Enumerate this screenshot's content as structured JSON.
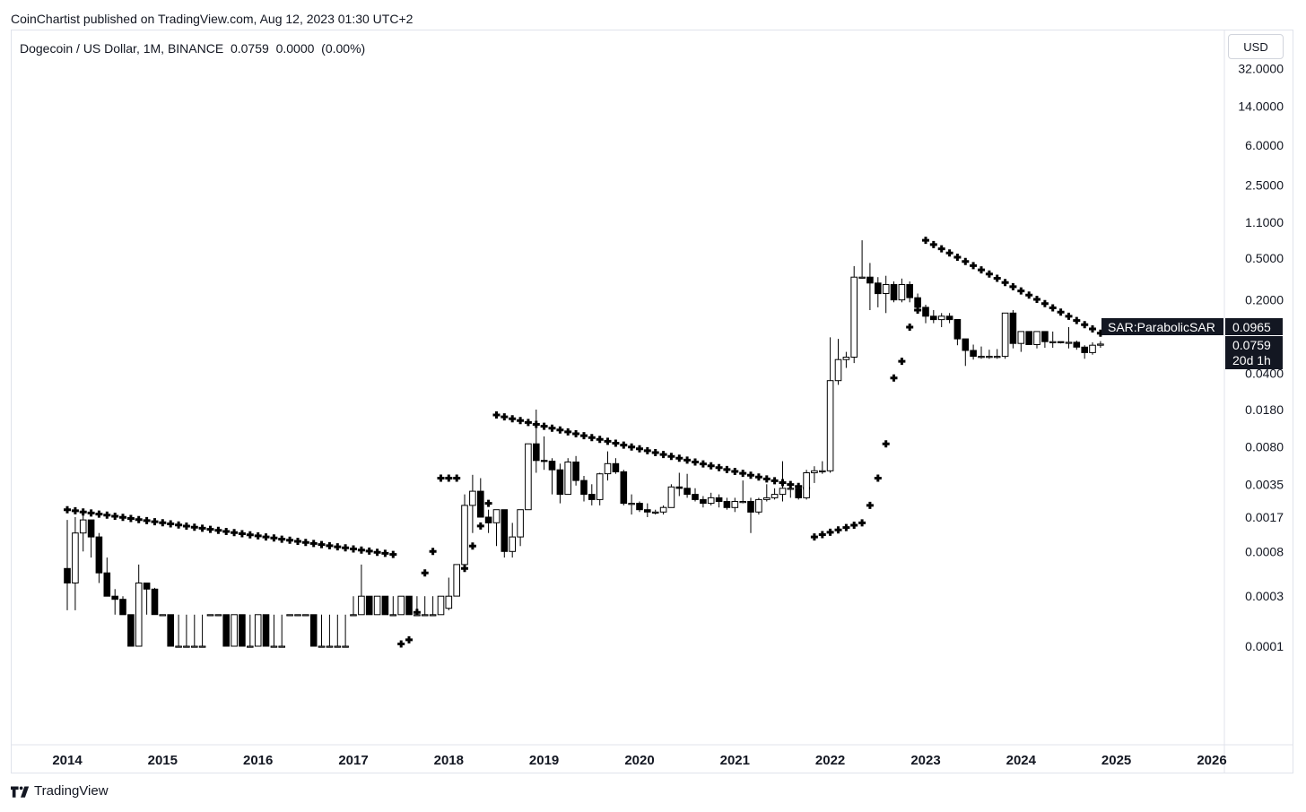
{
  "header": {
    "published": "CoinChartist published on TradingView.com, Aug 12, 2023 01:30 UTC+2",
    "symbol_line": "Dogecoin / US Dollar, 1M, BINANCE  0.0759  0.0000  (0.00%)",
    "currency": "USD"
  },
  "footer": {
    "brand": "TradingView"
  },
  "chart_data": {
    "type": "candlestick",
    "title": "Dogecoin / US Dollar, 1M, BINANCE",
    "scale": "log",
    "y_ticks": [
      "32.0000",
      "14.0000",
      "6.0000",
      "2.5000",
      "1.1000",
      "0.5000",
      "0.2000",
      "0.0400",
      "0.0180",
      "0.0080",
      "0.0035",
      "0.0017",
      "0.0008",
      "0.0003",
      "0.0001"
    ],
    "x_ticks": [
      "2014",
      "2015",
      "2016",
      "2017",
      "2018",
      "2019",
      "2020",
      "2021",
      "2022",
      "2023",
      "2024",
      "2025",
      "2026"
    ],
    "last_price": "0.0759",
    "countdown": "20d 1h",
    "indicator": {
      "name": "SAR:ParabolicSAR",
      "value": "0.0965"
    },
    "candles_key": "t=months since Jan 2014, o/h/l/c in USD",
    "candles": [
      {
        "t": 0,
        "o": 0.00055,
        "h": 0.0016,
        "l": 0.00022,
        "c": 0.0004
      },
      {
        "t": 1,
        "o": 0.0004,
        "h": 0.0017,
        "l": 0.00022,
        "c": 0.0012
      },
      {
        "t": 2,
        "o": 0.0012,
        "h": 0.0019,
        "l": 0.0008,
        "c": 0.0016
      },
      {
        "t": 3,
        "o": 0.0016,
        "h": 0.0016,
        "l": 0.0007,
        "c": 0.0011
      },
      {
        "t": 4,
        "o": 0.0011,
        "h": 0.0012,
        "l": 0.0004,
        "c": 0.0005
      },
      {
        "t": 5,
        "o": 0.0005,
        "h": 0.0007,
        "l": 0.0003,
        "c": 0.0003
      },
      {
        "t": 6,
        "o": 0.0003,
        "h": 0.00035,
        "l": 0.0002,
        "c": 0.00028
      },
      {
        "t": 7,
        "o": 0.00028,
        "h": 0.0003,
        "l": 0.0002,
        "c": 0.0002
      },
      {
        "t": 8,
        "o": 0.0002,
        "h": 0.0002,
        "l": 0.0001,
        "c": 0.0001
      },
      {
        "t": 9,
        "o": 0.0001,
        "h": 0.0006,
        "l": 0.0001,
        "c": 0.0004
      },
      {
        "t": 10,
        "o": 0.0004,
        "h": 0.0004,
        "l": 0.0002,
        "c": 0.00035
      },
      {
        "t": 11,
        "o": 0.00035,
        "h": 0.00036,
        "l": 0.0002,
        "c": 0.0002
      },
      {
        "t": 12,
        "o": 0.0002,
        "h": 0.0002,
        "l": 0.0002,
        "c": 0.0002
      },
      {
        "t": 13,
        "o": 0.0002,
        "h": 0.0002,
        "l": 0.0001,
        "c": 0.0001
      },
      {
        "t": 14,
        "o": 0.0001,
        "h": 0.0002,
        "l": 0.0001,
        "c": 0.0001
      },
      {
        "t": 15,
        "o": 0.0001,
        "h": 0.0002,
        "l": 0.0001,
        "c": 0.0001
      },
      {
        "t": 16,
        "o": 0.0001,
        "h": 0.0002,
        "l": 0.0001,
        "c": 0.0001
      },
      {
        "t": 17,
        "o": 0.0001,
        "h": 0.0002,
        "l": 0.0001,
        "c": 0.0001
      },
      {
        "t": 18,
        "o": 0.0002,
        "h": 0.0002,
        "l": 0.0002,
        "c": 0.0002
      },
      {
        "t": 19,
        "o": 0.0002,
        "h": 0.0002,
        "l": 0.0002,
        "c": 0.0002
      },
      {
        "t": 20,
        "o": 0.0002,
        "h": 0.0002,
        "l": 0.0001,
        "c": 0.0001
      },
      {
        "t": 21,
        "o": 0.0001,
        "h": 0.0002,
        "l": 0.0001,
        "c": 0.0002
      },
      {
        "t": 22,
        "o": 0.0002,
        "h": 0.0002,
        "l": 0.0001,
        "c": 0.0001
      },
      {
        "t": 23,
        "o": 0.0001,
        "h": 0.0002,
        "l": 0.0001,
        "c": 0.0001
      },
      {
        "t": 24,
        "o": 0.0001,
        "h": 0.0002,
        "l": 0.0001,
        "c": 0.0002
      },
      {
        "t": 25,
        "o": 0.0002,
        "h": 0.0002,
        "l": 0.0001,
        "c": 0.0001
      },
      {
        "t": 26,
        "o": 0.0001,
        "h": 0.0002,
        "l": 0.0001,
        "c": 0.0001
      },
      {
        "t": 27,
        "o": 0.0001,
        "h": 0.0002,
        "l": 0.0001,
        "c": 0.0001
      },
      {
        "t": 28,
        "o": 0.0002,
        "h": 0.0002,
        "l": 0.0002,
        "c": 0.0002
      },
      {
        "t": 29,
        "o": 0.0002,
        "h": 0.0002,
        "l": 0.0002,
        "c": 0.0002
      },
      {
        "t": 30,
        "o": 0.0002,
        "h": 0.0002,
        "l": 0.0002,
        "c": 0.0002
      },
      {
        "t": 31,
        "o": 0.0002,
        "h": 0.0002,
        "l": 0.0001,
        "c": 0.0001
      },
      {
        "t": 32,
        "o": 0.0001,
        "h": 0.0002,
        "l": 0.0001,
        "c": 0.0001
      },
      {
        "t": 33,
        "o": 0.0001,
        "h": 0.0002,
        "l": 0.0001,
        "c": 0.0001
      },
      {
        "t": 34,
        "o": 0.0001,
        "h": 0.0002,
        "l": 0.0001,
        "c": 0.0001
      },
      {
        "t": 35,
        "o": 0.0001,
        "h": 0.0002,
        "l": 0.0001,
        "c": 0.0001
      },
      {
        "t": 36,
        "o": 0.0002,
        "h": 0.0003,
        "l": 0.0002,
        "c": 0.0002
      },
      {
        "t": 37,
        "o": 0.0002,
        "h": 0.0006,
        "l": 0.0002,
        "c": 0.0003
      },
      {
        "t": 38,
        "o": 0.0003,
        "h": 0.0003,
        "l": 0.0002,
        "c": 0.0002
      },
      {
        "t": 39,
        "o": 0.0002,
        "h": 0.0003,
        "l": 0.0002,
        "c": 0.0003
      },
      {
        "t": 40,
        "o": 0.0003,
        "h": 0.0003,
        "l": 0.0002,
        "c": 0.0002
      },
      {
        "t": 41,
        "o": 0.0002,
        "h": 0.0003,
        "l": 0.0002,
        "c": 0.0002
      },
      {
        "t": 42,
        "o": 0.0002,
        "h": 0.0003,
        "l": 0.0002,
        "c": 0.0003
      },
      {
        "t": 43,
        "o": 0.0003,
        "h": 0.0003,
        "l": 0.0002,
        "c": 0.0002
      },
      {
        "t": 44,
        "o": 0.0002,
        "h": 0.0003,
        "l": 0.0002,
        "c": 0.0002
      },
      {
        "t": 45,
        "o": 0.0002,
        "h": 0.0003,
        "l": 0.0002,
        "c": 0.0002
      },
      {
        "t": 46,
        "o": 0.0002,
        "h": 0.0003,
        "l": 0.0002,
        "c": 0.0002
      },
      {
        "t": 47,
        "o": 0.0002,
        "h": 0.0003,
        "l": 0.0002,
        "c": 0.0003
      },
      {
        "t": 48,
        "o": 0.00023,
        "h": 0.00045,
        "l": 0.00022,
        "c": 0.0003
      },
      {
        "t": 49,
        "o": 0.0003,
        "h": 0.0006,
        "l": 0.0003,
        "c": 0.0006
      },
      {
        "t": 50,
        "o": 0.0006,
        "h": 0.0028,
        "l": 0.0006,
        "c": 0.0022
      },
      {
        "t": 51,
        "o": 0.0022,
        "h": 0.0043,
        "l": 0.0012,
        "c": 0.003
      },
      {
        "t": 52,
        "o": 0.003,
        "h": 0.004,
        "l": 0.0017,
        "c": 0.0017
      },
      {
        "t": 53,
        "o": 0.0017,
        "h": 0.002,
        "l": 0.0012,
        "c": 0.0015
      },
      {
        "t": 54,
        "o": 0.0015,
        "h": 0.002,
        "l": 0.0009,
        "c": 0.002
      },
      {
        "t": 55,
        "o": 0.002,
        "h": 0.002,
        "l": 0.0007,
        "c": 0.0008
      },
      {
        "t": 56,
        "o": 0.0008,
        "h": 0.0015,
        "l": 0.0007,
        "c": 0.0011
      },
      {
        "t": 57,
        "o": 0.0011,
        "h": 0.002,
        "l": 0.0009,
        "c": 0.002
      },
      {
        "t": 58,
        "o": 0.002,
        "h": 0.0085,
        "l": 0.002,
        "c": 0.0085
      },
      {
        "t": 59,
        "o": 0.0085,
        "h": 0.018,
        "l": 0.0045,
        "c": 0.0059
      },
      {
        "t": 60,
        "o": 0.0059,
        "h": 0.01,
        "l": 0.0048,
        "c": 0.0058
      },
      {
        "t": 61,
        "o": 0.0058,
        "h": 0.0062,
        "l": 0.0028,
        "c": 0.0048
      },
      {
        "t": 62,
        "o": 0.0048,
        "h": 0.0055,
        "l": 0.0023,
        "c": 0.0028
      },
      {
        "t": 63,
        "o": 0.0028,
        "h": 0.0062,
        "l": 0.0028,
        "c": 0.0057
      },
      {
        "t": 64,
        "o": 0.0057,
        "h": 0.0065,
        "l": 0.0034,
        "c": 0.0038
      },
      {
        "t": 65,
        "o": 0.0038,
        "h": 0.0042,
        "l": 0.0024,
        "c": 0.0028
      },
      {
        "t": 66,
        "o": 0.0028,
        "h": 0.0035,
        "l": 0.0022,
        "c": 0.0025
      },
      {
        "t": 67,
        "o": 0.0025,
        "h": 0.0045,
        "l": 0.0022,
        "c": 0.0044
      },
      {
        "t": 68,
        "o": 0.0044,
        "h": 0.0072,
        "l": 0.0038,
        "c": 0.0055
      },
      {
        "t": 69,
        "o": 0.0055,
        "h": 0.0062,
        "l": 0.0044,
        "c": 0.0046
      },
      {
        "t": 70,
        "o": 0.0046,
        "h": 0.0048,
        "l": 0.0022,
        "c": 0.0023
      },
      {
        "t": 71,
        "o": 0.0023,
        "h": 0.0028,
        "l": 0.0018,
        "c": 0.0023
      },
      {
        "t": 72,
        "o": 0.0023,
        "h": 0.0024,
        "l": 0.0019,
        "c": 0.002
      },
      {
        "t": 73,
        "o": 0.002,
        "h": 0.0023,
        "l": 0.0017,
        "c": 0.0019
      },
      {
        "t": 74,
        "o": 0.0019,
        "h": 0.002,
        "l": 0.0018,
        "c": 0.0019
      },
      {
        "t": 75,
        "o": 0.0019,
        "h": 0.0022,
        "l": 0.0018,
        "c": 0.0021
      },
      {
        "t": 76,
        "o": 0.0021,
        "h": 0.0035,
        "l": 0.0021,
        "c": 0.0033
      },
      {
        "t": 77,
        "o": 0.0033,
        "h": 0.0045,
        "l": 0.0027,
        "c": 0.0032
      },
      {
        "t": 78,
        "o": 0.0032,
        "h": 0.0044,
        "l": 0.0026,
        "c": 0.0028
      },
      {
        "t": 79,
        "o": 0.0028,
        "h": 0.0032,
        "l": 0.0024,
        "c": 0.0025
      },
      {
        "t": 80,
        "o": 0.0025,
        "h": 0.0027,
        "l": 0.0021,
        "c": 0.0023
      },
      {
        "t": 81,
        "o": 0.0023,
        "h": 0.0029,
        "l": 0.0022,
        "c": 0.0026
      },
      {
        "t": 82,
        "o": 0.0026,
        "h": 0.0028,
        "l": 0.0021,
        "c": 0.0024
      },
      {
        "t": 83,
        "o": 0.0024,
        "h": 0.0026,
        "l": 0.002,
        "c": 0.0021
      },
      {
        "t": 84,
        "o": 0.0021,
        "h": 0.0026,
        "l": 0.0019,
        "c": 0.0024
      },
      {
        "t": 85,
        "o": 0.0024,
        "h": 0.0038,
        "l": 0.0023,
        "c": 0.0024
      },
      {
        "t": 86,
        "o": 0.0024,
        "h": 0.0026,
        "l": 0.0012,
        "c": 0.0019
      },
      {
        "t": 87,
        "o": 0.0019,
        "h": 0.0026,
        "l": 0.0018,
        "c": 0.0025
      },
      {
        "t": 88,
        "o": 0.0025,
        "h": 0.0035,
        "l": 0.0024,
        "c": 0.0026
      },
      {
        "t": 89,
        "o": 0.0026,
        "h": 0.0032,
        "l": 0.0025,
        "c": 0.0028
      },
      {
        "t": 90,
        "o": 0.0028,
        "h": 0.0058,
        "l": 0.0024,
        "c": 0.0032
      },
      {
        "t": 91,
        "o": 0.0032,
        "h": 0.0036,
        "l": 0.0026,
        "c": 0.0032
      },
      {
        "t": 92,
        "o": 0.0032,
        "h": 0.0034,
        "l": 0.0025,
        "c": 0.0026
      },
      {
        "t": 93,
        "o": 0.0026,
        "h": 0.0048,
        "l": 0.0025,
        "c": 0.0045
      },
      {
        "t": 94,
        "o": 0.0045,
        "h": 0.0052,
        "l": 0.0036,
        "c": 0.0047
      },
      {
        "t": 95,
        "o": 0.0047,
        "h": 0.0058,
        "l": 0.0044,
        "c": 0.0047
      },
      {
        "t": 96,
        "o": 0.0047,
        "h": 0.088,
        "l": 0.0045,
        "c": 0.034
      },
      {
        "t": 97,
        "o": 0.034,
        "h": 0.085,
        "l": 0.031,
        "c": 0.054
      },
      {
        "t": 98,
        "o": 0.054,
        "h": 0.064,
        "l": 0.045,
        "c": 0.057
      },
      {
        "t": 99,
        "o": 0.057,
        "h": 0.42,
        "l": 0.05,
        "c": 0.33
      },
      {
        "t": 100,
        "o": 0.33,
        "h": 0.74,
        "l": 0.32,
        "c": 0.33
      },
      {
        "t": 101,
        "o": 0.33,
        "h": 0.45,
        "l": 0.16,
        "c": 0.29
      },
      {
        "t": 102,
        "o": 0.29,
        "h": 0.33,
        "l": 0.17,
        "c": 0.23
      },
      {
        "t": 103,
        "o": 0.23,
        "h": 0.34,
        "l": 0.15,
        "c": 0.28
      },
      {
        "t": 104,
        "o": 0.28,
        "h": 0.3,
        "l": 0.19,
        "c": 0.2
      },
      {
        "t": 105,
        "o": 0.2,
        "h": 0.32,
        "l": 0.19,
        "c": 0.28
      },
      {
        "t": 106,
        "o": 0.28,
        "h": 0.3,
        "l": 0.19,
        "c": 0.21
      },
      {
        "t": 107,
        "o": 0.21,
        "h": 0.23,
        "l": 0.16,
        "c": 0.17
      },
      {
        "t": 108,
        "o": 0.17,
        "h": 0.18,
        "l": 0.12,
        "c": 0.14
      },
      {
        "t": 109,
        "o": 0.14,
        "h": 0.16,
        "l": 0.12,
        "c": 0.13
      },
      {
        "t": 110,
        "o": 0.13,
        "h": 0.15,
        "l": 0.11,
        "c": 0.14
      },
      {
        "t": 111,
        "o": 0.14,
        "h": 0.15,
        "l": 0.12,
        "c": 0.13
      },
      {
        "t": 112,
        "o": 0.13,
        "h": 0.13,
        "l": 0.074,
        "c": 0.085
      },
      {
        "t": 113,
        "o": 0.085,
        "h": 0.085,
        "l": 0.047,
        "c": 0.066
      },
      {
        "t": 114,
        "o": 0.066,
        "h": 0.075,
        "l": 0.054,
        "c": 0.058
      },
      {
        "t": 115,
        "o": 0.058,
        "h": 0.072,
        "l": 0.055,
        "c": 0.058
      },
      {
        "t": 116,
        "o": 0.058,
        "h": 0.067,
        "l": 0.055,
        "c": 0.058
      },
      {
        "t": 117,
        "o": 0.058,
        "h": 0.068,
        "l": 0.055,
        "c": 0.058
      },
      {
        "t": 118,
        "o": 0.058,
        "h": 0.15,
        "l": 0.055,
        "c": 0.15
      },
      {
        "t": 119,
        "o": 0.15,
        "h": 0.16,
        "l": 0.069,
        "c": 0.077
      },
      {
        "t": 120,
        "o": 0.077,
        "h": 0.1,
        "l": 0.064,
        "c": 0.1
      },
      {
        "t": 121,
        "o": 0.1,
        "h": 0.1,
        "l": 0.075,
        "c": 0.075
      },
      {
        "t": 122,
        "o": 0.075,
        "h": 0.1,
        "l": 0.069,
        "c": 0.1
      },
      {
        "t": 123,
        "o": 0.1,
        "h": 0.1,
        "l": 0.07,
        "c": 0.08
      },
      {
        "t": 124,
        "o": 0.08,
        "h": 0.1,
        "l": 0.07,
        "c": 0.08
      },
      {
        "t": 125,
        "o": 0.08,
        "h": 0.08,
        "l": 0.077,
        "c": 0.079
      },
      {
        "t": 126,
        "o": 0.079,
        "h": 0.11,
        "l": 0.069,
        "c": 0.079
      },
      {
        "t": 127,
        "o": 0.079,
        "h": 0.082,
        "l": 0.067,
        "c": 0.071
      },
      {
        "t": 128,
        "o": 0.071,
        "h": 0.074,
        "l": 0.055,
        "c": 0.063
      },
      {
        "t": 129,
        "o": 0.063,
        "h": 0.079,
        "l": 0.06,
        "c": 0.074
      },
      {
        "t": 130,
        "o": 0.074,
        "h": 0.081,
        "l": 0.07,
        "c": 0.0759
      }
    ],
    "sar_key": "t=months since Jan 2014, v=SAR value in USD",
    "sar_segments": [
      {
        "t0": 0,
        "t1": 41,
        "v0": 0.002,
        "v1": 0.00075
      },
      {
        "t0": 42,
        "t1": 43,
        "v0": 0.000105,
        "v1": 0.000115
      },
      {
        "t0": 44,
        "t1": 44,
        "v0": 0.00021,
        "v1": 0.00021
      },
      {
        "t0": 45,
        "t1": 45,
        "v0": 0.0005,
        "v1": 0.0005
      },
      {
        "t0": 46,
        "t1": 46,
        "v0": 0.0008,
        "v1": 0.0008
      },
      {
        "t0": 47,
        "t1": 49,
        "v0": 0.004,
        "v1": 0.004
      },
      {
        "t0": 50,
        "t1": 50,
        "v0": 0.00055,
        "v1": 0.00055
      },
      {
        "t0": 51,
        "t1": 51,
        "v0": 0.0009,
        "v1": 0.0009
      },
      {
        "t0": 52,
        "t1": 52,
        "v0": 0.0014,
        "v1": 0.0014
      },
      {
        "t0": 53,
        "t1": 53,
        "v0": 0.0023,
        "v1": 0.0023
      },
      {
        "t0": 54,
        "t1": 93,
        "v0": 0.016,
        "v1": 0.0032
      },
      {
        "t0": 94,
        "t1": 100,
        "v0": 0.0011,
        "v1": 0.0015
      },
      {
        "t0": 101,
        "t1": 101,
        "v0": 0.0022,
        "v1": 0.0022
      },
      {
        "t0": 102,
        "t1": 102,
        "v0": 0.004,
        "v1": 0.004
      },
      {
        "t0": 103,
        "t1": 103,
        "v0": 0.0085,
        "v1": 0.0085
      },
      {
        "t0": 104,
        "t1": 104,
        "v0": 0.036,
        "v1": 0.036
      },
      {
        "t0": 105,
        "t1": 105,
        "v0": 0.052,
        "v1": 0.052
      },
      {
        "t0": 106,
        "t1": 106,
        "v0": 0.11,
        "v1": 0.11
      },
      {
        "t0": 107,
        "t1": 107,
        "v0": 0.16,
        "v1": 0.16
      },
      {
        "t0": 108,
        "t1": 130,
        "v0": 0.74,
        "v1": 0.0965
      }
    ]
  }
}
